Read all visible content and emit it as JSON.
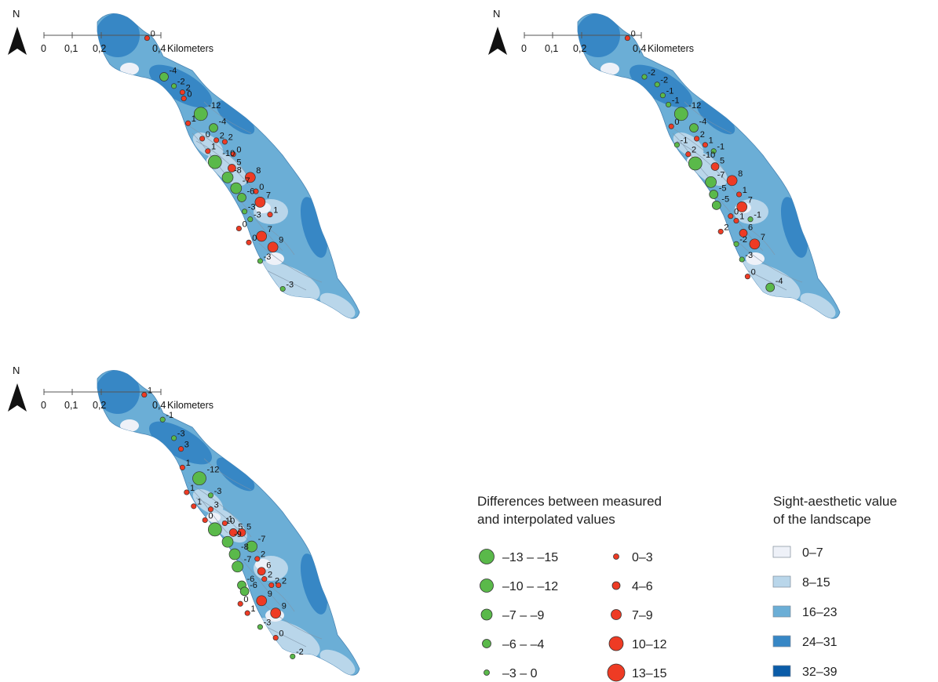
{
  "panels": [
    {
      "id": "panel-a",
      "north": "N",
      "scale": {
        "ticks": [
          "0",
          "0,1",
          "0,2",
          "0,4"
        ],
        "unit": "Kilometers"
      },
      "points": [
        {
          "v": 0,
          "x": 0.215,
          "y": 0.085
        },
        {
          "v": -4,
          "x": 0.275,
          "y": 0.21
        },
        {
          "v": -2,
          "x": 0.31,
          "y": 0.24
        },
        {
          "v": 2,
          "x": 0.34,
          "y": 0.26
        },
        {
          "v": 0,
          "x": 0.345,
          "y": 0.28
        },
        {
          "v": -12,
          "x": 0.405,
          "y": 0.33
        },
        {
          "v": 1,
          "x": 0.36,
          "y": 0.36
        },
        {
          "v": -4,
          "x": 0.45,
          "y": 0.375
        },
        {
          "v": 0,
          "x": 0.41,
          "y": 0.41
        },
        {
          "v": 2,
          "x": 0.46,
          "y": 0.415
        },
        {
          "v": 2,
          "x": 0.49,
          "y": 0.42
        },
        {
          "v": 1,
          "x": 0.43,
          "y": 0.45
        },
        {
          "v": 0,
          "x": 0.52,
          "y": 0.46
        },
        {
          "v": -10,
          "x": 0.455,
          "y": 0.485
        },
        {
          "v": 5,
          "x": 0.515,
          "y": 0.505
        },
        {
          "v": -8,
          "x": 0.5,
          "y": 0.535
        },
        {
          "v": 8,
          "x": 0.58,
          "y": 0.535
        },
        {
          "v": -7,
          "x": 0.53,
          "y": 0.57
        },
        {
          "v": 0,
          "x": 0.6,
          "y": 0.58
        },
        {
          "v": -6,
          "x": 0.55,
          "y": 0.6
        },
        {
          "v": 7,
          "x": 0.615,
          "y": 0.615
        },
        {
          "v": -3,
          "x": 0.56,
          "y": 0.645
        },
        {
          "v": -3,
          "x": 0.58,
          "y": 0.67
        },
        {
          "v": 1,
          "x": 0.65,
          "y": 0.655
        },
        {
          "v": 0,
          "x": 0.54,
          "y": 0.7
        },
        {
          "v": 7,
          "x": 0.62,
          "y": 0.725
        },
        {
          "v": 0,
          "x": 0.575,
          "y": 0.745
        },
        {
          "v": 9,
          "x": 0.66,
          "y": 0.76
        },
        {
          "v": -3,
          "x": 0.615,
          "y": 0.805
        },
        {
          "v": -3,
          "x": 0.695,
          "y": 0.895
        }
      ]
    },
    {
      "id": "panel-b",
      "north": "N",
      "scale": {
        "ticks": [
          "0",
          "0,1",
          "0,2",
          "0,4"
        ],
        "unit": "Kilometers"
      },
      "points": [
        {
          "v": 0,
          "x": 0.215,
          "y": 0.085
        },
        {
          "v": -2,
          "x": 0.275,
          "y": 0.21
        },
        {
          "v": -2,
          "x": 0.32,
          "y": 0.235
        },
        {
          "v": -1,
          "x": 0.34,
          "y": 0.27
        },
        {
          "v": -1,
          "x": 0.36,
          "y": 0.3
        },
        {
          "v": -12,
          "x": 0.405,
          "y": 0.33
        },
        {
          "v": 0,
          "x": 0.37,
          "y": 0.37
        },
        {
          "v": -4,
          "x": 0.45,
          "y": 0.375
        },
        {
          "v": -1,
          "x": 0.39,
          "y": 0.43
        },
        {
          "v": 2,
          "x": 0.46,
          "y": 0.41
        },
        {
          "v": 1,
          "x": 0.49,
          "y": 0.43
        },
        {
          "v": 2,
          "x": 0.43,
          "y": 0.46
        },
        {
          "v": -1,
          "x": 0.52,
          "y": 0.45
        },
        {
          "v": -10,
          "x": 0.455,
          "y": 0.49
        },
        {
          "v": 5,
          "x": 0.525,
          "y": 0.5
        },
        {
          "v": -7,
          "x": 0.51,
          "y": 0.55
        },
        {
          "v": 8,
          "x": 0.585,
          "y": 0.545
        },
        {
          "v": -5,
          "x": 0.52,
          "y": 0.59
        },
        {
          "v": 1,
          "x": 0.61,
          "y": 0.59
        },
        {
          "v": -5,
          "x": 0.53,
          "y": 0.625
        },
        {
          "v": 7,
          "x": 0.62,
          "y": 0.63
        },
        {
          "v": 0,
          "x": 0.58,
          "y": 0.66
        },
        {
          "v": 1,
          "x": 0.6,
          "y": 0.675
        },
        {
          "v": -1,
          "x": 0.65,
          "y": 0.67
        },
        {
          "v": 2,
          "x": 0.545,
          "y": 0.71
        },
        {
          "v": 6,
          "x": 0.625,
          "y": 0.715
        },
        {
          "v": -2,
          "x": 0.6,
          "y": 0.75
        },
        {
          "v": 7,
          "x": 0.665,
          "y": 0.75
        },
        {
          "v": -3,
          "x": 0.62,
          "y": 0.8
        },
        {
          "v": 0,
          "x": 0.64,
          "y": 0.855
        },
        {
          "v": -4,
          "x": 0.72,
          "y": 0.89
        }
      ]
    },
    {
      "id": "panel-c",
      "north": "N",
      "scale": {
        "ticks": [
          "0",
          "0,1",
          "0,2",
          "0,4"
        ],
        "unit": "Kilometers"
      },
      "points": [
        {
          "v": 1,
          "x": 0.205,
          "y": 0.085
        },
        {
          "v": -1,
          "x": 0.27,
          "y": 0.165
        },
        {
          "v": -3,
          "x": 0.31,
          "y": 0.225
        },
        {
          "v": 3,
          "x": 0.335,
          "y": 0.26
        },
        {
          "v": 1,
          "x": 0.34,
          "y": 0.32
        },
        {
          "v": -12,
          "x": 0.4,
          "y": 0.355
        },
        {
          "v": 1,
          "x": 0.355,
          "y": 0.4
        },
        {
          "v": -3,
          "x": 0.44,
          "y": 0.41
        },
        {
          "v": 1,
          "x": 0.38,
          "y": 0.445
        },
        {
          "v": 3,
          "x": 0.44,
          "y": 0.455
        },
        {
          "v": 0,
          "x": 0.42,
          "y": 0.49
        },
        {
          "v": -10,
          "x": 0.455,
          "y": 0.52
        },
        {
          "v": 1,
          "x": 0.49,
          "y": 0.5
        },
        {
          "v": 5,
          "x": 0.52,
          "y": 0.53
        },
        {
          "v": 5,
          "x": 0.55,
          "y": 0.53
        },
        {
          "v": -9,
          "x": 0.5,
          "y": 0.56
        },
        {
          "v": -7,
          "x": 0.585,
          "y": 0.575
        },
        {
          "v": -8,
          "x": 0.525,
          "y": 0.6
        },
        {
          "v": 2,
          "x": 0.605,
          "y": 0.615
        },
        {
          "v": -7,
          "x": 0.535,
          "y": 0.64
        },
        {
          "v": 6,
          "x": 0.62,
          "y": 0.655
        },
        {
          "v": 2,
          "x": 0.63,
          "y": 0.68
        },
        {
          "v": -6,
          "x": 0.55,
          "y": 0.7
        },
        {
          "v": -6,
          "x": 0.56,
          "y": 0.72
        },
        {
          "v": 2,
          "x": 0.655,
          "y": 0.7
        },
        {
          "v": 2,
          "x": 0.68,
          "y": 0.7
        },
        {
          "v": 9,
          "x": 0.62,
          "y": 0.75
        },
        {
          "v": 0,
          "x": 0.545,
          "y": 0.76
        },
        {
          "v": 1,
          "x": 0.57,
          "y": 0.79
        },
        {
          "v": 9,
          "x": 0.67,
          "y": 0.79
        },
        {
          "v": -3,
          "x": 0.615,
          "y": 0.835
        },
        {
          "v": 0,
          "x": 0.67,
          "y": 0.87
        },
        {
          "v": -2,
          "x": 0.73,
          "y": 0.93
        }
      ]
    }
  ],
  "legend_differences": {
    "title_line1": "Differences between measured",
    "title_line2": "and interpolated values",
    "negative": [
      {
        "label": "–13 – –15",
        "r": 9.5
      },
      {
        "label": "–10 – –12",
        "r": 8.5
      },
      {
        "label": "–7 – –9",
        "r": 7
      },
      {
        "label": "–6 – –4",
        "r": 5.5
      },
      {
        "label": "–3 – 0",
        "r": 3.5
      }
    ],
    "positive": [
      {
        "label": "0–3",
        "r": 3.5
      },
      {
        "label": "4–6",
        "r": 5
      },
      {
        "label": "7–9",
        "r": 6.5
      },
      {
        "label": "10–12",
        "r": 9
      },
      {
        "label": "13–15",
        "r": 11
      }
    ],
    "green": "#5ab94a",
    "red": "#ee3b24"
  },
  "legend_sight": {
    "title_line1": "Sight-aesthetic value",
    "title_line2": "of the landscape",
    "classes": [
      {
        "label": "0–7",
        "color": "#eef1f8"
      },
      {
        "label": "8–15",
        "color": "#b9d6ea"
      },
      {
        "label": "16–23",
        "color": "#6baed6"
      },
      {
        "label": "24–31",
        "color": "#3787c5"
      },
      {
        "label": "32–39",
        "color": "#0b5ca8"
      }
    ]
  }
}
